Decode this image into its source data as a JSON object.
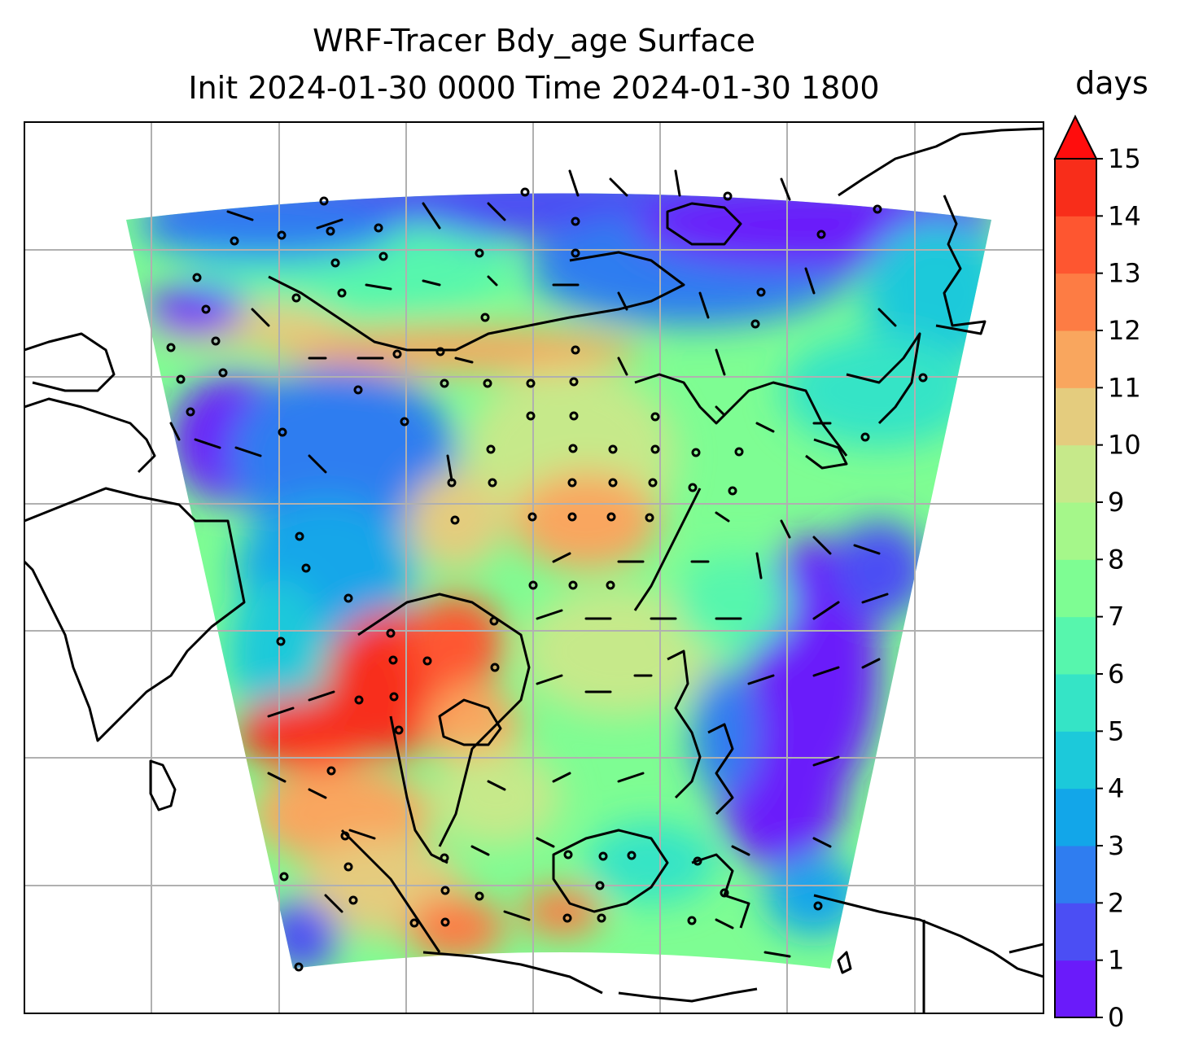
{
  "title": {
    "line1": "WRF-Tracer Bdy_age Surface",
    "line2": "Init 2024-01-30 0000 Time 2024-01-30 1800"
  },
  "colorbar": {
    "unit": "days",
    "ticks": [
      "0",
      "1",
      "2",
      "3",
      "4",
      "5",
      "6",
      "7",
      "8",
      "9",
      "10",
      "11",
      "12",
      "13",
      "14",
      "15"
    ],
    "levels": [
      "#6a1bfa",
      "#4b4ef4",
      "#2f7df0",
      "#12a6e9",
      "#1cc9da",
      "#35e4c6",
      "#57f6ad",
      "#7efd93",
      "#a5f78a",
      "#c6e98a",
      "#e4cc7e",
      "#f9a65e",
      "#fd7c44",
      "#fe5630",
      "#f82d1a"
    ],
    "extend_color": "#ff0d0d"
  }
}
